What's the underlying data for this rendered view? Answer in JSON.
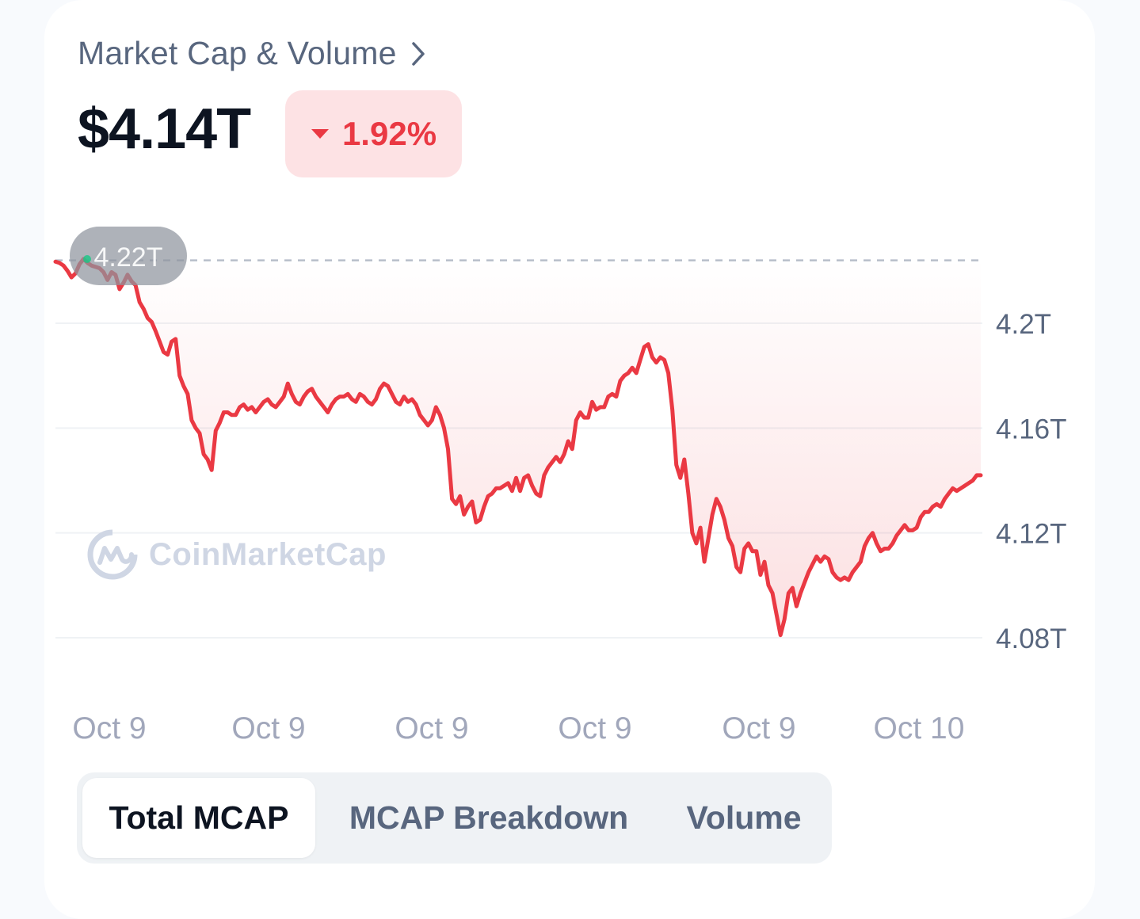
{
  "header": {
    "title": "Market Cap & Volume",
    "price": "$4.14T",
    "change": "1.92%"
  },
  "colors": {
    "down": "#ea3943",
    "downBg": "#fde2e4",
    "text": "#0d1421",
    "muted": "#58667e"
  },
  "icons": {
    "header_link": "chevron-right-icon",
    "change": "caret-down-icon",
    "watermark": "coinmarketcap-logo-icon"
  },
  "watermark": "CoinMarketCap",
  "tabs": [
    {
      "label": "Total MCAP",
      "active": true
    },
    {
      "label": "MCAP Breakdown",
      "active": false
    },
    {
      "label": "Volume",
      "active": false
    }
  ],
  "chart_data": {
    "type": "area",
    "xlabel": "",
    "ylabel": "",
    "y_ticks": [
      "4.2T",
      "4.16T",
      "4.12T",
      "4.08T"
    ],
    "y_tick_values": [
      4.2,
      4.16,
      4.12,
      4.08
    ],
    "x_ticks": [
      "Oct 9",
      "Oct 9",
      "Oct 9",
      "Oct 9",
      "Oct 9",
      "Oct 10"
    ],
    "ylim": [
      4.08,
      4.224
    ],
    "max_marker": "4.22T",
    "max_value": 4.224,
    "grid": true,
    "series": [
      {
        "values": [
          4.2235,
          4.223,
          4.222,
          4.22,
          4.2175,
          4.219,
          4.2225,
          4.2245,
          4.223,
          4.222,
          4.2215,
          4.221,
          4.2195,
          4.2165,
          4.2195,
          4.2185,
          4.213,
          4.2155,
          4.2185,
          4.216,
          4.2145,
          4.208,
          4.2055,
          4.202,
          4.2005,
          4.197,
          4.193,
          4.189,
          4.188,
          4.193,
          4.194,
          4.18,
          4.176,
          4.173,
          4.163,
          4.16,
          4.158,
          4.15,
          4.148,
          4.144,
          4.159,
          4.162,
          4.166,
          4.166,
          4.165,
          4.165,
          4.168,
          4.169,
          4.167,
          4.168,
          4.166,
          4.168,
          4.17,
          4.171,
          4.169,
          4.168,
          4.17,
          4.172,
          4.177,
          4.173,
          4.17,
          4.169,
          4.172,
          4.174,
          4.175,
          4.172,
          4.17,
          4.168,
          4.166,
          4.169,
          4.171,
          4.172,
          4.172,
          4.173,
          4.171,
          4.17,
          4.173,
          4.172,
          4.17,
          4.169,
          4.171,
          4.175,
          4.177,
          4.176,
          4.173,
          4.17,
          4.169,
          4.172,
          4.17,
          4.171,
          4.169,
          4.165,
          4.163,
          4.161,
          4.163,
          4.168,
          4.165,
          4.16,
          4.152,
          4.133,
          4.131,
          4.134,
          4.127,
          4.13,
          4.132,
          4.124,
          4.125,
          4.13,
          4.134,
          4.135,
          4.137,
          4.137,
          4.138,
          4.139,
          4.136,
          4.141,
          4.136,
          4.141,
          4.142,
          4.138,
          4.135,
          4.134,
          4.142,
          4.145,
          4.147,
          4.149,
          4.147,
          4.15,
          4.155,
          4.152,
          4.163,
          4.166,
          4.164,
          4.164,
          4.17,
          4.167,
          4.168,
          4.168,
          4.172,
          4.173,
          4.172,
          4.178,
          4.18,
          4.181,
          4.183,
          4.181,
          4.186,
          4.191,
          4.192,
          4.187,
          4.185,
          4.187,
          4.186,
          4.181,
          4.167,
          4.146,
          4.141,
          4.148,
          4.135,
          4.12,
          4.116,
          4.122,
          4.109,
          4.118,
          4.127,
          4.133,
          4.13,
          4.125,
          4.118,
          4.115,
          4.107,
          4.105,
          4.114,
          4.116,
          4.113,
          4.113,
          4.104,
          4.109,
          4.1,
          4.097,
          4.089,
          4.081,
          4.087,
          4.097,
          4.099,
          4.092,
          4.097,
          4.101,
          4.105,
          4.108,
          4.111,
          4.109,
          4.111,
          4.11,
          4.105,
          4.103,
          4.102,
          4.103,
          4.102,
          4.105,
          4.107,
          4.109,
          4.115,
          4.118,
          4.12,
          4.116,
          4.113,
          4.114,
          4.114,
          4.116,
          4.119,
          4.121,
          4.123,
          4.121,
          4.121,
          4.122,
          4.126,
          4.128,
          4.128,
          4.13,
          4.131,
          4.13,
          4.133,
          4.135,
          4.137,
          4.136,
          4.137,
          4.138,
          4.139,
          4.14,
          4.142,
          4.142
        ]
      }
    ]
  }
}
